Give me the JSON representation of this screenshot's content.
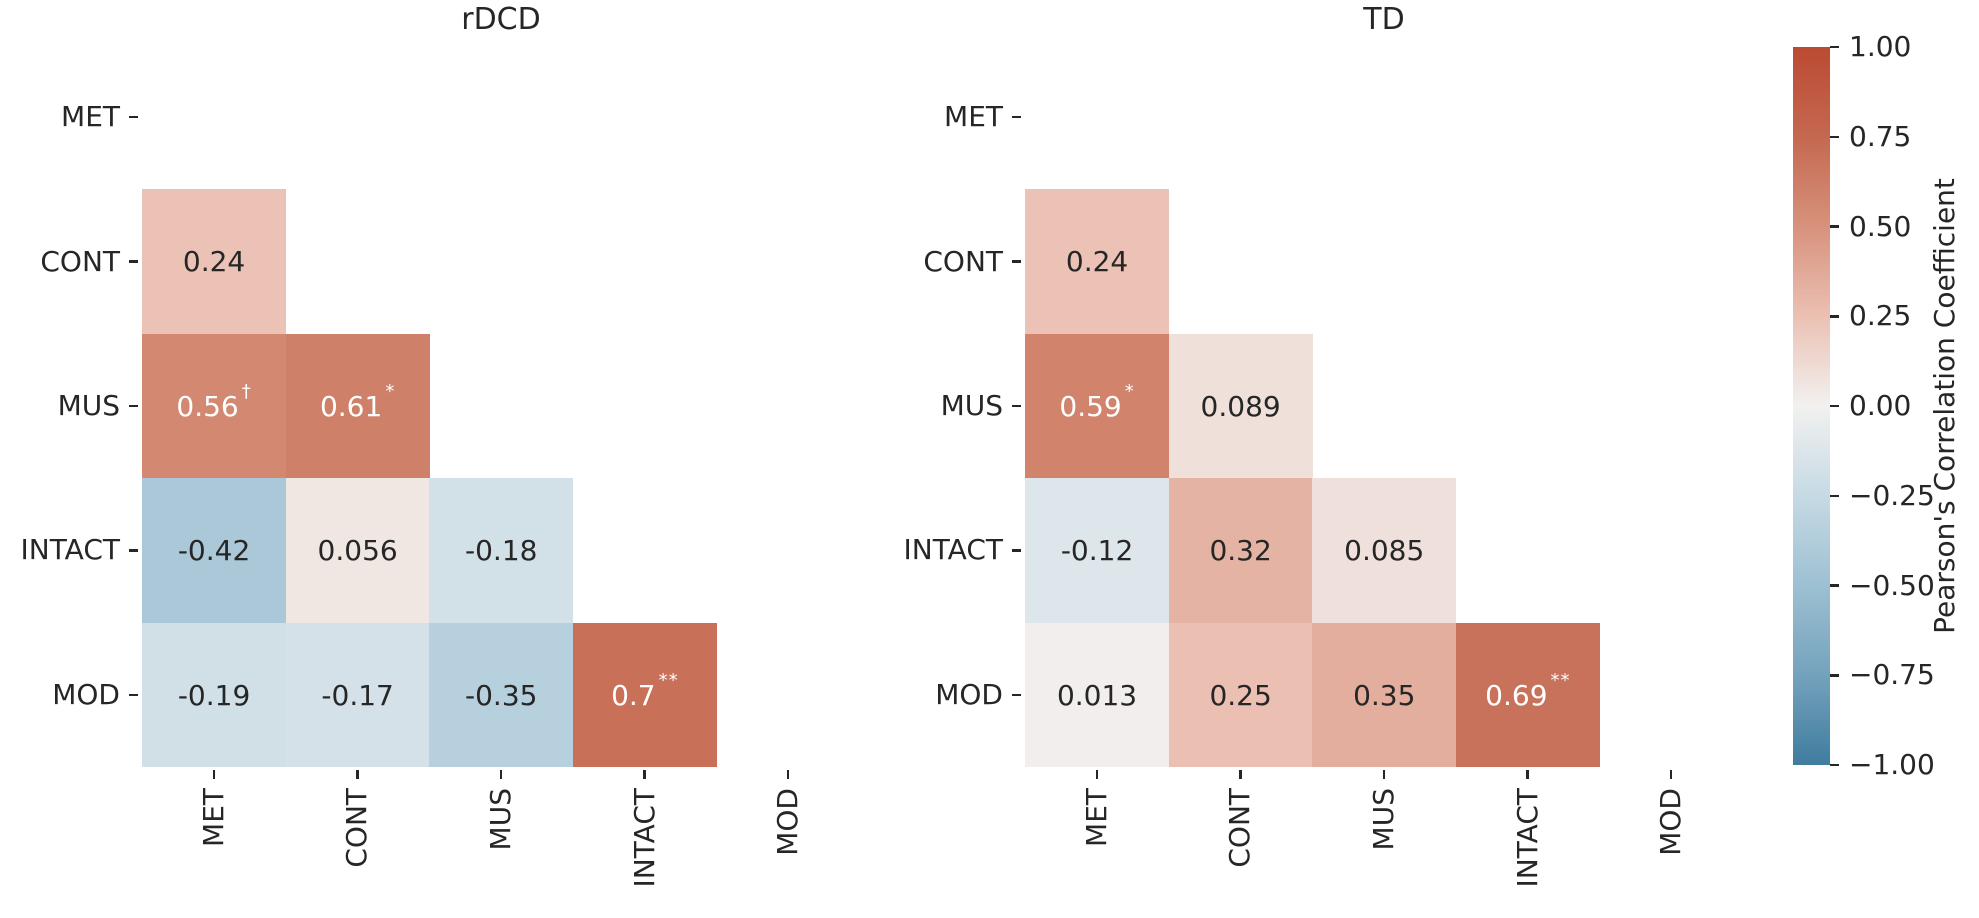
{
  "figure": {
    "background": "#ffffff",
    "text_color": "#262626",
    "cell_text_light": "#ffffff"
  },
  "chart_data": [
    {
      "type": "heatmap",
      "title": "rDCD",
      "categories": [
        "MET",
        "CONT",
        "MUS",
        "INTACT",
        "MOD"
      ],
      "shape": "lower-triangle-below-diagonal",
      "value_range": [
        -1,
        1
      ],
      "cells": [
        {
          "row": "CONT",
          "col": "MET",
          "value": 0.24,
          "label": "0.24",
          "sup": ""
        },
        {
          "row": "MUS",
          "col": "MET",
          "value": 0.56,
          "label": "0.56",
          "sup": "†"
        },
        {
          "row": "MUS",
          "col": "CONT",
          "value": 0.61,
          "label": "0.61",
          "sup": "*"
        },
        {
          "row": "INTACT",
          "col": "MET",
          "value": -0.42,
          "label": "-0.42",
          "sup": ""
        },
        {
          "row": "INTACT",
          "col": "CONT",
          "value": 0.056,
          "label": "0.056",
          "sup": ""
        },
        {
          "row": "INTACT",
          "col": "MUS",
          "value": -0.18,
          "label": "-0.18",
          "sup": ""
        },
        {
          "row": "MOD",
          "col": "MET",
          "value": -0.19,
          "label": "-0.19",
          "sup": ""
        },
        {
          "row": "MOD",
          "col": "CONT",
          "value": -0.17,
          "label": "-0.17",
          "sup": ""
        },
        {
          "row": "MOD",
          "col": "MUS",
          "value": -0.35,
          "label": "-0.35",
          "sup": ""
        },
        {
          "row": "MOD",
          "col": "INTACT",
          "value": 0.7,
          "label": "0.7",
          "sup": "**"
        }
      ]
    },
    {
      "type": "heatmap",
      "title": "TD",
      "categories": [
        "MET",
        "CONT",
        "MUS",
        "INTACT",
        "MOD"
      ],
      "shape": "lower-triangle-below-diagonal",
      "value_range": [
        -1,
        1
      ],
      "cells": [
        {
          "row": "CONT",
          "col": "MET",
          "value": 0.24,
          "label": "0.24",
          "sup": ""
        },
        {
          "row": "MUS",
          "col": "MET",
          "value": 0.59,
          "label": "0.59",
          "sup": "*"
        },
        {
          "row": "MUS",
          "col": "CONT",
          "value": 0.089,
          "label": "0.089",
          "sup": ""
        },
        {
          "row": "INTACT",
          "col": "MET",
          "value": -0.12,
          "label": "-0.12",
          "sup": ""
        },
        {
          "row": "INTACT",
          "col": "CONT",
          "value": 0.32,
          "label": "0.32",
          "sup": ""
        },
        {
          "row": "INTACT",
          "col": "MUS",
          "value": 0.085,
          "label": "0.085",
          "sup": ""
        },
        {
          "row": "MOD",
          "col": "MET",
          "value": 0.013,
          "label": "0.013",
          "sup": ""
        },
        {
          "row": "MOD",
          "col": "CONT",
          "value": 0.25,
          "label": "0.25",
          "sup": ""
        },
        {
          "row": "MOD",
          "col": "MUS",
          "value": 0.35,
          "label": "0.35",
          "sup": ""
        },
        {
          "row": "MOD",
          "col": "INTACT",
          "value": 0.69,
          "label": "0.69",
          "sup": "**"
        }
      ]
    }
  ],
  "colorbar": {
    "label": "Pearson's Correlation Coefficient",
    "vmin": -1,
    "vmax": 1,
    "ticks": [
      "1.00",
      "0.75",
      "0.50",
      "0.25",
      "0.00",
      "−0.25",
      "−0.50",
      "−0.75",
      "−1.00"
    ],
    "tick_values": [
      1,
      0.75,
      0.5,
      0.25,
      0,
      -0.25,
      -0.5,
      -0.75,
      -1
    ],
    "gradient_stops": [
      {
        "v": -1.0,
        "c": "#3f7c9e"
      },
      {
        "v": -0.75,
        "c": "#74a2bd"
      },
      {
        "v": -0.5,
        "c": "#9dc0d2"
      },
      {
        "v": -0.25,
        "c": "#c6dae4"
      },
      {
        "v": 0.0,
        "c": "#f2f1f0"
      },
      {
        "v": 0.25,
        "c": "#ebc0b3"
      },
      {
        "v": 0.5,
        "c": "#d7927c"
      },
      {
        "v": 0.75,
        "c": "#c56850"
      },
      {
        "v": 1.0,
        "c": "#bb4a32"
      }
    ]
  }
}
